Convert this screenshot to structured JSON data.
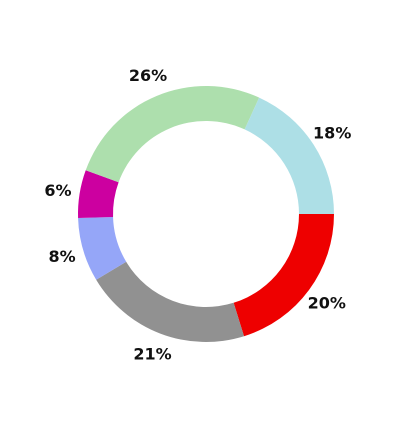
{
  "chart_data": {
    "type": "pie",
    "donut": true,
    "start_angle_deg": 0,
    "direction": "clockwise",
    "slices": [
      {
        "value": 20,
        "label": "20%",
        "color": "#ee0000"
      },
      {
        "value": 21,
        "label": "21%",
        "color": "#919191"
      },
      {
        "value": 8,
        "label": "8%",
        "color": "#95a6f8"
      },
      {
        "value": 6,
        "label": "6%",
        "color": "#cc00a0"
      },
      {
        "value": 26,
        "label": "26%",
        "color": "#addfad"
      },
      {
        "value": 18,
        "label": "18%",
        "color": "#addfe6"
      }
    ],
    "legend": "none"
  }
}
